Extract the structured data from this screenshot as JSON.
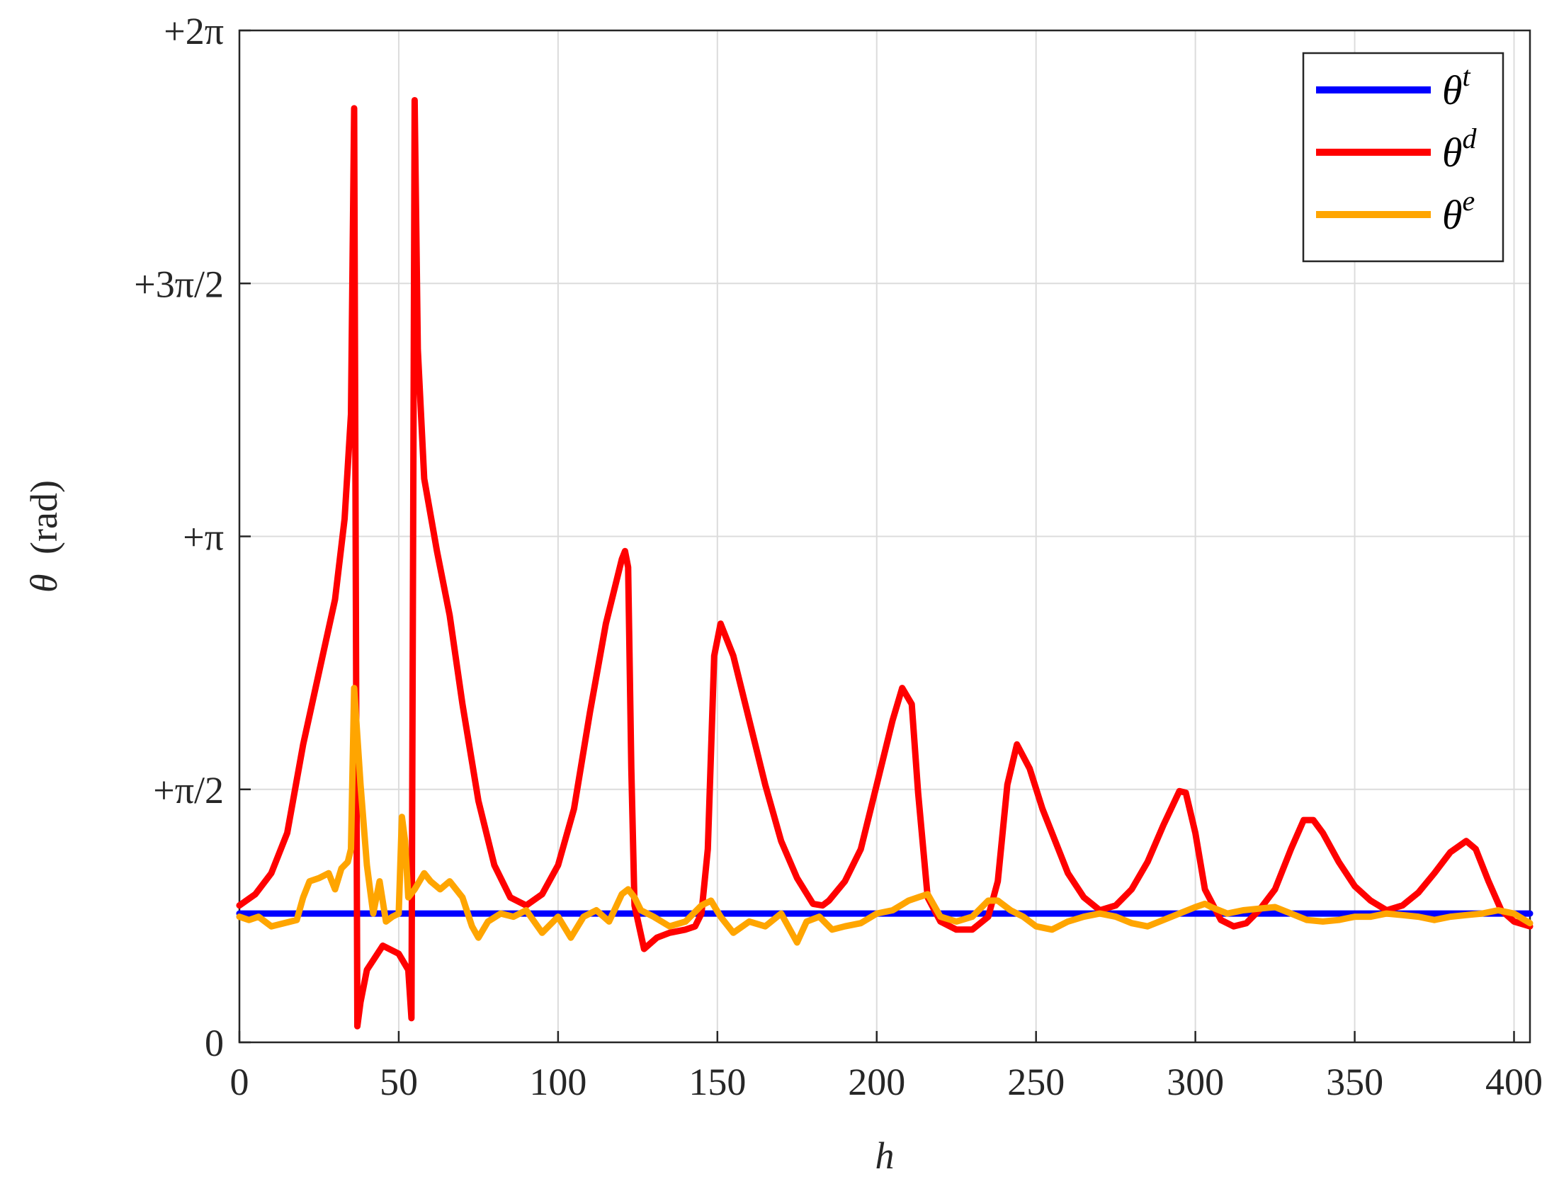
{
  "chart_data": {
    "type": "line",
    "xlabel": "h",
    "ylabel_symbol": "θ",
    "ylabel_unit": "(rad)",
    "xlim": [
      0,
      405
    ],
    "ylim": [
      0,
      6.283185307
    ],
    "grid": true,
    "legend_position": "top-right",
    "x_ticks": [
      {
        "value": 0,
        "label": "0"
      },
      {
        "value": 50,
        "label": "50"
      },
      {
        "value": 100,
        "label": "100"
      },
      {
        "value": 150,
        "label": "150"
      },
      {
        "value": 200,
        "label": "200"
      },
      {
        "value": 250,
        "label": "250"
      },
      {
        "value": 300,
        "label": "300"
      },
      {
        "value": 350,
        "label": "350"
      },
      {
        "value": 400,
        "label": "400"
      }
    ],
    "y_ticks": [
      {
        "value": 0,
        "label": "0"
      },
      {
        "value": 1.5707963,
        "label": "+π/2"
      },
      {
        "value": 3.1415927,
        "label": "+π"
      },
      {
        "value": 4.712389,
        "label": "+3π/2"
      },
      {
        "value": 6.2831853,
        "label": "+2π"
      }
    ],
    "series": [
      {
        "name": "θ",
        "sup": "t",
        "color": "#0000ff",
        "points": [
          [
            0,
            0.8
          ],
          [
            405,
            0.8
          ]
        ]
      },
      {
        "name": "θ",
        "sup": "d",
        "color": "#ff0000",
        "points": [
          [
            0,
            0.85
          ],
          [
            5,
            0.92
          ],
          [
            10,
            1.05
          ],
          [
            15,
            1.3
          ],
          [
            20,
            1.85
          ],
          [
            25,
            2.3
          ],
          [
            30,
            2.75
          ],
          [
            33,
            3.25
          ],
          [
            35,
            3.9
          ],
          [
            36,
            5.8
          ],
          [
            37,
            0.1
          ],
          [
            38,
            0.25
          ],
          [
            40,
            0.45
          ],
          [
            45,
            0.6
          ],
          [
            50,
            0.55
          ],
          [
            53,
            0.45
          ],
          [
            54,
            0.15
          ],
          [
            55,
            5.85
          ],
          [
            56,
            4.3
          ],
          [
            58,
            3.5
          ],
          [
            62,
            3.05
          ],
          [
            66,
            2.65
          ],
          [
            70,
            2.1
          ],
          [
            75,
            1.5
          ],
          [
            80,
            1.1
          ],
          [
            85,
            0.9
          ],
          [
            90,
            0.85
          ],
          [
            95,
            0.92
          ],
          [
            100,
            1.1
          ],
          [
            105,
            1.45
          ],
          [
            110,
            2.05
          ],
          [
            115,
            2.6
          ],
          [
            120,
            3.0
          ],
          [
            121,
            3.05
          ],
          [
            122,
            2.95
          ],
          [
            123,
            1.7
          ],
          [
            124,
            0.85
          ],
          [
            127,
            0.58
          ],
          [
            131,
            0.65
          ],
          [
            135,
            0.68
          ],
          [
            140,
            0.7
          ],
          [
            143,
            0.72
          ],
          [
            145,
            0.8
          ],
          [
            147,
            1.2
          ],
          [
            149,
            2.4
          ],
          [
            151,
            2.6
          ],
          [
            155,
            2.4
          ],
          [
            160,
            2.0
          ],
          [
            165,
            1.6
          ],
          [
            170,
            1.25
          ],
          [
            175,
            1.02
          ],
          [
            180,
            0.86
          ],
          [
            183,
            0.85
          ],
          [
            185,
            0.88
          ],
          [
            190,
            1.0
          ],
          [
            195,
            1.2
          ],
          [
            200,
            1.6
          ],
          [
            205,
            2.0
          ],
          [
            208,
            2.2
          ],
          [
            211,
            2.1
          ],
          [
            213,
            1.55
          ],
          [
            216,
            0.9
          ],
          [
            220,
            0.75
          ],
          [
            225,
            0.7
          ],
          [
            230,
            0.7
          ],
          [
            235,
            0.78
          ],
          [
            238,
            1.0
          ],
          [
            241,
            1.6
          ],
          [
            244,
            1.85
          ],
          [
            248,
            1.7
          ],
          [
            252,
            1.45
          ],
          [
            256,
            1.25
          ],
          [
            260,
            1.05
          ],
          [
            265,
            0.9
          ],
          [
            270,
            0.82
          ],
          [
            275,
            0.85
          ],
          [
            280,
            0.95
          ],
          [
            285,
            1.12
          ],
          [
            290,
            1.35
          ],
          [
            295,
            1.56
          ],
          [
            297,
            1.55
          ],
          [
            300,
            1.3
          ],
          [
            303,
            0.95
          ],
          [
            308,
            0.76
          ],
          [
            312,
            0.72
          ],
          [
            316,
            0.74
          ],
          [
            320,
            0.82
          ],
          [
            325,
            0.95
          ],
          [
            330,
            1.2
          ],
          [
            334,
            1.38
          ],
          [
            337,
            1.38
          ],
          [
            340,
            1.3
          ],
          [
            345,
            1.12
          ],
          [
            350,
            0.97
          ],
          [
            355,
            0.88
          ],
          [
            360,
            0.82
          ],
          [
            365,
            0.85
          ],
          [
            370,
            0.93
          ],
          [
            375,
            1.05
          ],
          [
            380,
            1.18
          ],
          [
            385,
            1.25
          ],
          [
            388,
            1.2
          ],
          [
            392,
            1.0
          ],
          [
            396,
            0.82
          ],
          [
            400,
            0.75
          ],
          [
            405,
            0.72
          ]
        ]
      },
      {
        "name": "θ",
        "sup": "e",
        "color": "#ffa500",
        "points": [
          [
            0,
            0.78
          ],
          [
            3,
            0.76
          ],
          [
            6,
            0.78
          ],
          [
            10,
            0.72
          ],
          [
            14,
            0.74
          ],
          [
            18,
            0.76
          ],
          [
            20,
            0.9
          ],
          [
            22,
            1.0
          ],
          [
            25,
            1.02
          ],
          [
            28,
            1.05
          ],
          [
            30,
            0.95
          ],
          [
            32,
            1.08
          ],
          [
            34,
            1.12
          ],
          [
            35,
            1.2
          ],
          [
            36,
            2.2
          ],
          [
            37,
            1.9
          ],
          [
            38,
            1.6
          ],
          [
            40,
            1.1
          ],
          [
            41,
            0.95
          ],
          [
            42,
            0.8
          ],
          [
            44,
            1.0
          ],
          [
            46,
            0.75
          ],
          [
            48,
            0.78
          ],
          [
            50,
            0.8
          ],
          [
            51,
            1.4
          ],
          [
            52,
            1.25
          ],
          [
            53,
            0.9
          ],
          [
            55,
            0.95
          ],
          [
            58,
            1.05
          ],
          [
            60,
            1.0
          ],
          [
            63,
            0.95
          ],
          [
            66,
            1.0
          ],
          [
            70,
            0.9
          ],
          [
            73,
            0.72
          ],
          [
            75,
            0.65
          ],
          [
            78,
            0.75
          ],
          [
            82,
            0.8
          ],
          [
            86,
            0.78
          ],
          [
            90,
            0.82
          ],
          [
            95,
            0.68
          ],
          [
            100,
            0.78
          ],
          [
            104,
            0.65
          ],
          [
            108,
            0.78
          ],
          [
            112,
            0.82
          ],
          [
            116,
            0.75
          ],
          [
            120,
            0.92
          ],
          [
            122,
            0.95
          ],
          [
            124,
            0.9
          ],
          [
            126,
            0.82
          ],
          [
            130,
            0.78
          ],
          [
            135,
            0.72
          ],
          [
            140,
            0.75
          ],
          [
            145,
            0.85
          ],
          [
            148,
            0.88
          ],
          [
            151,
            0.78
          ],
          [
            155,
            0.68
          ],
          [
            160,
            0.75
          ],
          [
            165,
            0.72
          ],
          [
            170,
            0.8
          ],
          [
            175,
            0.62
          ],
          [
            178,
            0.75
          ],
          [
            182,
            0.78
          ],
          [
            186,
            0.7
          ],
          [
            190,
            0.72
          ],
          [
            195,
            0.74
          ],
          [
            200,
            0.8
          ],
          [
            205,
            0.82
          ],
          [
            210,
            0.88
          ],
          [
            213,
            0.9
          ],
          [
            216,
            0.92
          ],
          [
            220,
            0.78
          ],
          [
            225,
            0.75
          ],
          [
            230,
            0.78
          ],
          [
            235,
            0.88
          ],
          [
            238,
            0.88
          ],
          [
            242,
            0.82
          ],
          [
            246,
            0.78
          ],
          [
            250,
            0.72
          ],
          [
            255,
            0.7
          ],
          [
            260,
            0.75
          ],
          [
            265,
            0.78
          ],
          [
            270,
            0.8
          ],
          [
            275,
            0.78
          ],
          [
            280,
            0.74
          ],
          [
            285,
            0.72
          ],
          [
            290,
            0.76
          ],
          [
            295,
            0.8
          ],
          [
            300,
            0.84
          ],
          [
            303,
            0.86
          ],
          [
            305,
            0.84
          ],
          [
            310,
            0.8
          ],
          [
            315,
            0.82
          ],
          [
            320,
            0.83
          ],
          [
            325,
            0.84
          ],
          [
            330,
            0.8
          ],
          [
            335,
            0.76
          ],
          [
            340,
            0.75
          ],
          [
            345,
            0.76
          ],
          [
            350,
            0.78
          ],
          [
            355,
            0.78
          ],
          [
            360,
            0.8
          ],
          [
            365,
            0.79
          ],
          [
            370,
            0.78
          ],
          [
            375,
            0.76
          ],
          [
            380,
            0.78
          ],
          [
            385,
            0.79
          ],
          [
            390,
            0.8
          ],
          [
            395,
            0.82
          ],
          [
            400,
            0.8
          ],
          [
            405,
            0.74
          ]
        ]
      }
    ]
  }
}
